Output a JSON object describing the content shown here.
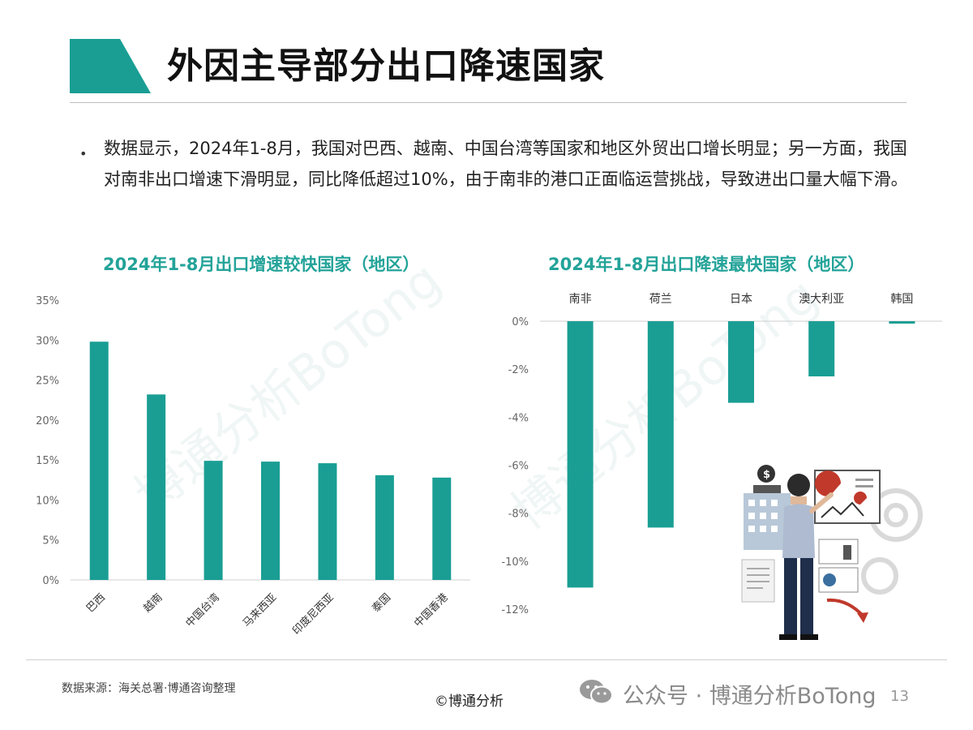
{
  "slide": {
    "title": "外因主导部分出口降速国家",
    "bullet": "数据显示，2024年1-8月，我国对巴西、越南、中国台湾等国家和地区外贸出口增长明显；另一方面，我国对南非出口增速下滑明显，同比降低超过10%，由于南非的港口正面临运营挑战，导致进出口量大幅下滑。",
    "accent_color": "#1a9e94"
  },
  "watermark": "博通分析BoTong",
  "footer": {
    "source": "数据来源：海关总署·博通咨询整理",
    "copyright": "©博通分析",
    "account": "公众号 · 博通分析BoTong",
    "page": "13"
  },
  "chart_data": [
    {
      "type": "bar",
      "title": "2024年1-8月出口增速较快国家（地区）",
      "categories": [
        "巴西",
        "越南",
        "中国台湾",
        "马来西亚",
        "印度尼西亚",
        "泰国",
        "中国香港"
      ],
      "values": [
        29.8,
        23.2,
        14.9,
        14.8,
        14.6,
        13.1,
        12.8
      ],
      "unit": "%",
      "ylim": [
        0,
        35
      ],
      "yticks": [
        "0%",
        "5%",
        "10%",
        "15%",
        "20%",
        "25%",
        "30%",
        "35%"
      ],
      "grid": false,
      "color": "#1a9e94"
    },
    {
      "type": "bar",
      "title": "2024年1-8月出口降速最快国家（地区）",
      "categories": [
        "南非",
        "荷兰",
        "日本",
        "澳大利亚",
        "韩国"
      ],
      "values": [
        -11.1,
        -8.6,
        -3.4,
        -2.3,
        -0.1
      ],
      "unit": "%",
      "ylim": [
        -12,
        0
      ],
      "yticks": [
        "0%",
        "-2%",
        "-4%",
        "-6%",
        "-8%",
        "-10%",
        "-12%"
      ],
      "grid": false,
      "color": "#1a9e94"
    }
  ]
}
